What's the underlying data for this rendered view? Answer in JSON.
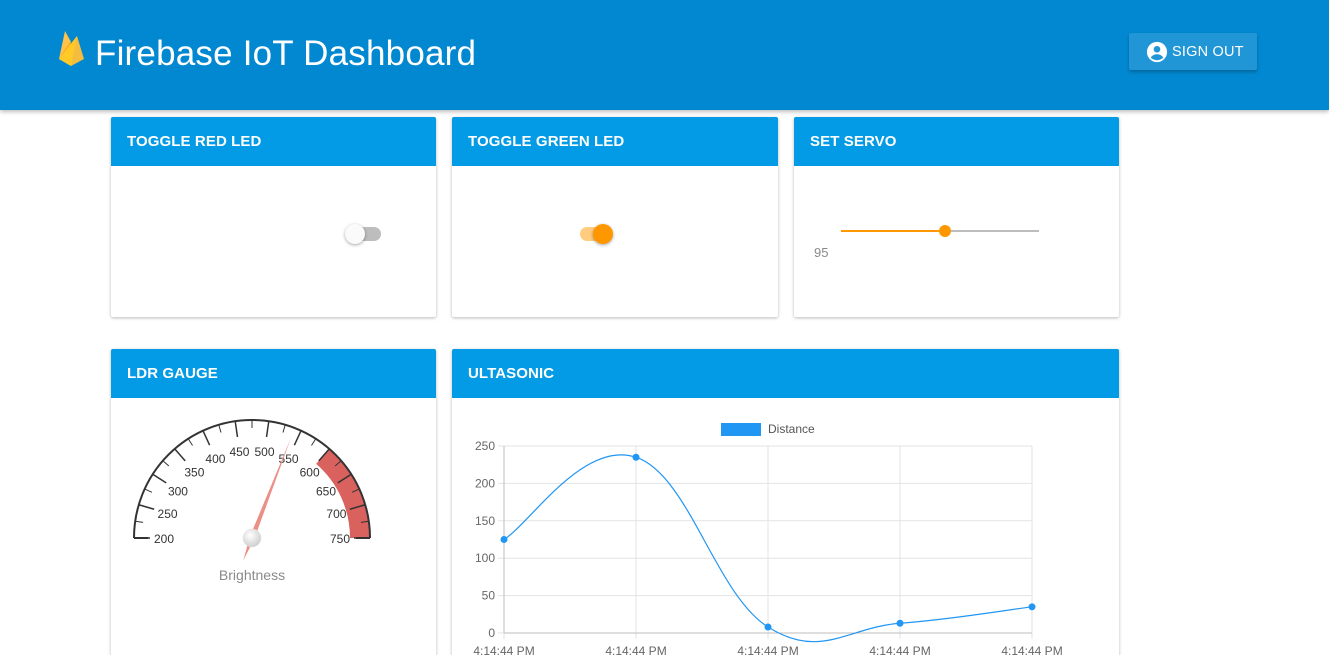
{
  "appbar": {
    "title": "Firebase IoT Dashboard",
    "signout_label": "SIGN OUT"
  },
  "cards": {
    "red_led": {
      "title": "TOGGLE RED LED",
      "checked": false
    },
    "green_led": {
      "title": "TOGGLE GREEN LED",
      "checked": true
    },
    "servo": {
      "title": "SET SERVO",
      "value": 95,
      "min": 0,
      "max": 180
    },
    "ldr": {
      "title": "LDR GAUGE",
      "label": "Brightness",
      "min": 200,
      "max": 750,
      "value": 540,
      "ticks": [
        "200",
        "250",
        "300",
        "350",
        "400",
        "450",
        "500",
        "550",
        "600",
        "650",
        "700",
        "750"
      ],
      "red_zone_from": 600
    },
    "ultrasonic": {
      "title": "ULTASONIC"
    }
  },
  "colors": {
    "appbar": "#0288d1",
    "card_header": "#039be5",
    "accent": "#ff9800",
    "series": "#2196f3",
    "gauge_red": "#d9625e"
  },
  "chart_data": {
    "type": "line",
    "x": [
      "4:14:44 PM",
      "4:14:44 PM",
      "4:14:44 PM",
      "4:14:44 PM",
      "4:14:44 PM"
    ],
    "series": [
      {
        "name": "Distance",
        "values": [
          125,
          235,
          8,
          13,
          35
        ]
      }
    ],
    "ylim": [
      0,
      250
    ],
    "yticks": [
      "0",
      "50",
      "100",
      "150",
      "200",
      "250"
    ],
    "legend": "top-center",
    "grid": true
  }
}
